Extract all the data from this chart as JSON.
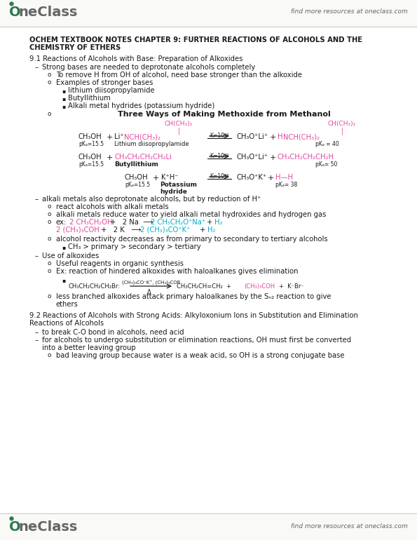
{
  "bg_color": "#ffffff",
  "header_bg": "#f9f9f7",
  "pink": "#e0479e",
  "cyan": "#00b0c8",
  "black": "#1a1a1a",
  "dark": "#333333",
  "gray": "#666666",
  "logo_green": "#2d7a4f",
  "header_right": "find more resources at oneclass.com",
  "footer_right": "find more resources at oneclass.com",
  "title1": "OCHEM TEXTBOOK NOTES CHAPTER 9: FURTHER REACTIONS OF ALCOHOLS AND THE",
  "title2": "CHEMISTRY OF ETHERS",
  "s91": "9.1 Reactions of Alcohols with Base: Preparation of Alkoxides",
  "b1": "Strong bases are needed to deprotonate alcohols completely",
  "s1a": "To remove H from OH of alcohol, need base stronger than the alkoxide",
  "s1b": "Examples of stronger bases",
  "li1": "lithium diisopropylamide",
  "li2": "Butyllithium",
  "li3": "Alkali metal hydrides (potassium hydride)",
  "diag_title": "Three Ways of Making Methoxide from Methanol",
  "b2": "alkali metals also deprotonate alcohols, but by reduction of H⁺",
  "s2a": "react alcohols with alkali metals",
  "s2b": "alkali metals reduce water to yield alkali metal hydroxides and hydrogen gas",
  "s2c1": "ex:  2 CH₃CH₂OH   +   2 Na  ⟶  2 CH₃CH₂O⁺Na⁺  +   H₂",
  "s2c2": "2 (CH₃)₃COH  +   2 K   ⟶  2 (CH₃)₃CO⁺K⁺  +   H₂",
  "s2d": "alcohol reactivity decreases as from primary to secondary to tertiary alcohols",
  "s2d_b": "CH₃ > primary > secondary > tertiary",
  "b3": "Use of alkoxides",
  "s3a": "Useful reagents in organic synthesis",
  "s3b": "Ex: reaction of hindered alkoxides with haloalkanes gives elimination",
  "s3c_l": "CH₃CH₂CH₂CH₂Br:",
  "s3c_arr_top": "(CH₃)₃CO⁻K⁺, (CH₃)₃COR",
  "s3c_arr_bot": "Δ",
  "s3c_r1": "CH₃CH₂CH=CH₂  +",
  "s3c_r2_pink": "(CH₃)₃COH",
  "s3c_r3": "+  K⁻Br⁻",
  "s3d1": "less branched alkoxides attack primary haloalkanes by the Sₙ₂ reaction to give",
  "s3d2": "ethers",
  "s92_1": "9.2 Reactions of Alcohols with Strong Acids: Alkyloxonium Ions in Substitution and Elimination",
  "s92_2": "Reactions of Alcohols",
  "b4": "to break C-O bond in alcohols, need acid",
  "b5a": "for alcohols to undergo substitution or elimination reactions, OH must first be converted",
  "b5b": "into a better leaving group",
  "s5": "bad leaving group because water is a weak acid, so OH is a strong conjugate base"
}
